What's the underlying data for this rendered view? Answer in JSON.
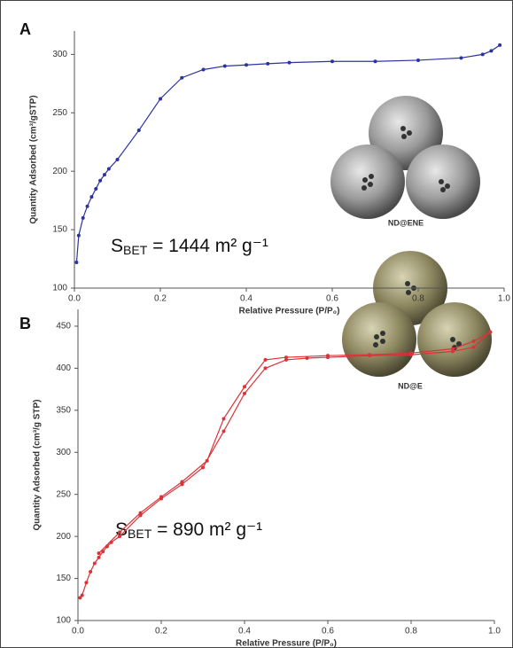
{
  "chart_data": [
    {
      "type": "line",
      "panel": "A",
      "x_label": "Relative Pressure (P/P₀)",
      "y_label": "Quantity Adsorbed (cm³/gSTP)",
      "annotation": {
        "main": "S",
        "sub": "BET",
        "rest": " = 1444 m² g⁻¹"
      },
      "inset_label": "ND@ENE",
      "xlim": [
        0,
        1
      ],
      "xticks": [
        {
          "value": 0,
          "label": "0.0"
        },
        0.2,
        0.4,
        0.6,
        0.8,
        {
          "value": 1,
          "label": "1.0"
        }
      ],
      "ylim": [
        100,
        320
      ],
      "yticks": [
        100,
        150,
        200,
        250,
        300
      ],
      "series": [
        {
          "color": "#2b33a0",
          "x": [
            0.005,
            0.01,
            0.02,
            0.03,
            0.04,
            0.05,
            0.06,
            0.07,
            0.08,
            0.1,
            0.15,
            0.2,
            0.25,
            0.3,
            0.35,
            0.4,
            0.45,
            0.5,
            0.6,
            0.7,
            0.8,
            0.9,
            0.95,
            0.97,
            0.99
          ],
          "values": [
            122,
            145,
            160,
            170,
            178,
            185,
            192,
            197,
            202,
            210,
            235,
            262,
            280,
            287,
            290,
            291,
            292,
            293,
            294,
            294,
            295,
            297,
            300,
            303,
            308
          ]
        }
      ]
    },
    {
      "type": "line",
      "panel": "B",
      "x_label": "Relative Pressure (P/P₀)",
      "y_label": "Quantity Adsorbed (cm³/g STP)",
      "annotation": {
        "main": "S",
        "sub": "BET",
        "rest": " = 890 m² g⁻¹"
      },
      "inset_label": "ND@E",
      "xlim": [
        0,
        1
      ],
      "xticks": [
        {
          "value": 0,
          "label": "0.0"
        },
        0.2,
        0.4,
        0.6,
        0.8,
        {
          "value": 1,
          "label": "1.0"
        }
      ],
      "ylim": [
        100,
        470
      ],
      "yticks": [
        100,
        150,
        200,
        250,
        300,
        350,
        400,
        450
      ],
      "series": [
        {
          "color": "#d9343a",
          "x": [
            0.005,
            0.01,
            0.02,
            0.03,
            0.04,
            0.05,
            0.06,
            0.07,
            0.08,
            0.1,
            0.15,
            0.2,
            0.25,
            0.3,
            0.35,
            0.4,
            0.45,
            0.5,
            0.55,
            0.6,
            0.7,
            0.8,
            0.9,
            0.95,
            0.99
          ],
          "values": [
            127,
            130,
            145,
            158,
            168,
            175,
            182,
            188,
            193,
            200,
            225,
            245,
            262,
            282,
            325,
            370,
            400,
            410,
            412,
            413,
            415,
            416,
            420,
            425,
            443
          ]
        },
        {
          "color": "#d9343a",
          "x": [
            0.99,
            0.95,
            0.9,
            0.8,
            0.7,
            0.6,
            0.5,
            0.45,
            0.4,
            0.35,
            0.31,
            0.25,
            0.2,
            0.15,
            0.1,
            0.05
          ],
          "values": [
            443,
            432,
            423,
            418,
            416,
            415,
            413,
            410,
            378,
            340,
            290,
            265,
            247,
            228,
            205,
            180
          ]
        }
      ]
    }
  ]
}
